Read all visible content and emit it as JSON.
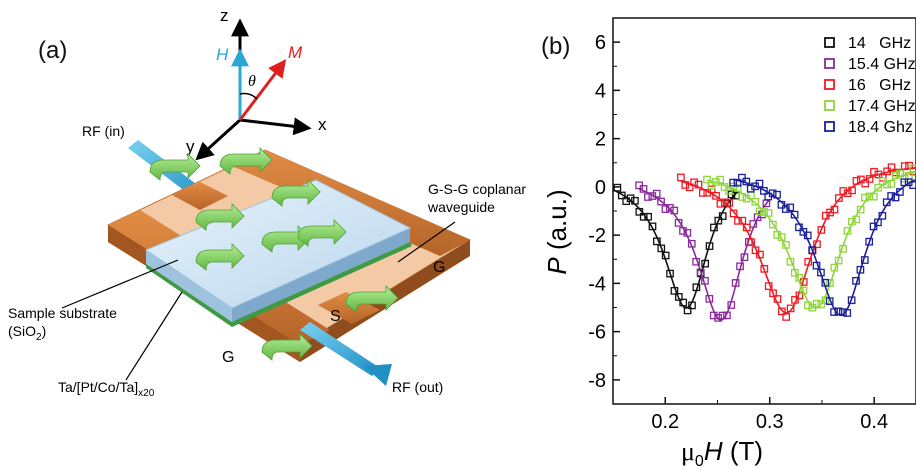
{
  "panel_a": {
    "label": "(a)",
    "axes": {
      "z": "z",
      "x": "x",
      "y": "y"
    },
    "field_label": "H",
    "magnetization_label": "M",
    "angle_label": "θ",
    "rf_in": "RF (in)",
    "rf_out": "RF (out)",
    "waveguide_label_line1": "G-S-G coplanar",
    "waveguide_label_line2": "waveguide",
    "substrate_label_line1": "Sample substrate",
    "substrate_label_line2": "(SiO",
    "substrate_label_sub": "2",
    "substrate_label_close": ")",
    "stack_label_main": "Ta/[Pt/Co/Ta]",
    "stack_label_sub": "x20",
    "strip_labels": {
      "ground_left": "G",
      "signal": "S",
      "ground_right": "G"
    },
    "colors": {
      "field": "#2aa7d4",
      "magnetization": "#e02020",
      "copper": "#c9742e",
      "copper_light": "#f1c8a4",
      "substrate": "#cfe3f2",
      "rf_arrow": "#35a9d9",
      "current_arrow": "#86d26a"
    }
  },
  "panel_b": {
    "label": "(b)",
    "colors": [
      "#111111",
      "#8b2a9e",
      "#ee1b24",
      "#8ed639",
      "#1c1f9b"
    ],
    "chart_data": {
      "type": "scatter",
      "xlabel_prefix": "μ",
      "xlabel_sub": "0",
      "xlabel_var": "H",
      "xlabel_unit": " (T)",
      "ylabel_var": "P",
      "ylabel_unit": " (a.u.)",
      "xlim": [
        0.15,
        0.44
      ],
      "ylim": [
        -9,
        7
      ],
      "xticks": [
        "0.2",
        "0.3",
        "0.4"
      ],
      "yticks": [
        "6",
        "4",
        "2",
        "0",
        "-2",
        "-4",
        "-6",
        "-8"
      ],
      "legend_position": "top-right",
      "series": [
        {
          "name": "14   GHz",
          "marker": "open-square",
          "x0": 0.222,
          "depth": 5.0,
          "width": 0.026,
          "xmin": 0.15,
          "xmax": 0.27,
          "base": 0.8
        },
        {
          "name": "15.4 GHz",
          "marker": "open-square",
          "x0": 0.255,
          "depth": 5.5,
          "width": 0.027,
          "xmin": 0.175,
          "xmax": 0.3,
          "base": 0.8
        },
        {
          "name": "16   GHz",
          "marker": "open-square",
          "x0": 0.318,
          "depth": 5.2,
          "width": 0.032,
          "xmin": 0.215,
          "xmax": 0.44,
          "base": 1.0
        },
        {
          "name": "17.4 GHz",
          "marker": "open-square",
          "x0": 0.346,
          "depth": 5.0,
          "width": 0.032,
          "xmin": 0.24,
          "xmax": 0.44,
          "base": 1.0
        },
        {
          "name": "18.4 Ghz",
          "marker": "open-square",
          "x0": 0.37,
          "depth": 5.3,
          "width": 0.03,
          "xmin": 0.265,
          "xmax": 0.44,
          "base": 1.0
        }
      ]
    }
  }
}
